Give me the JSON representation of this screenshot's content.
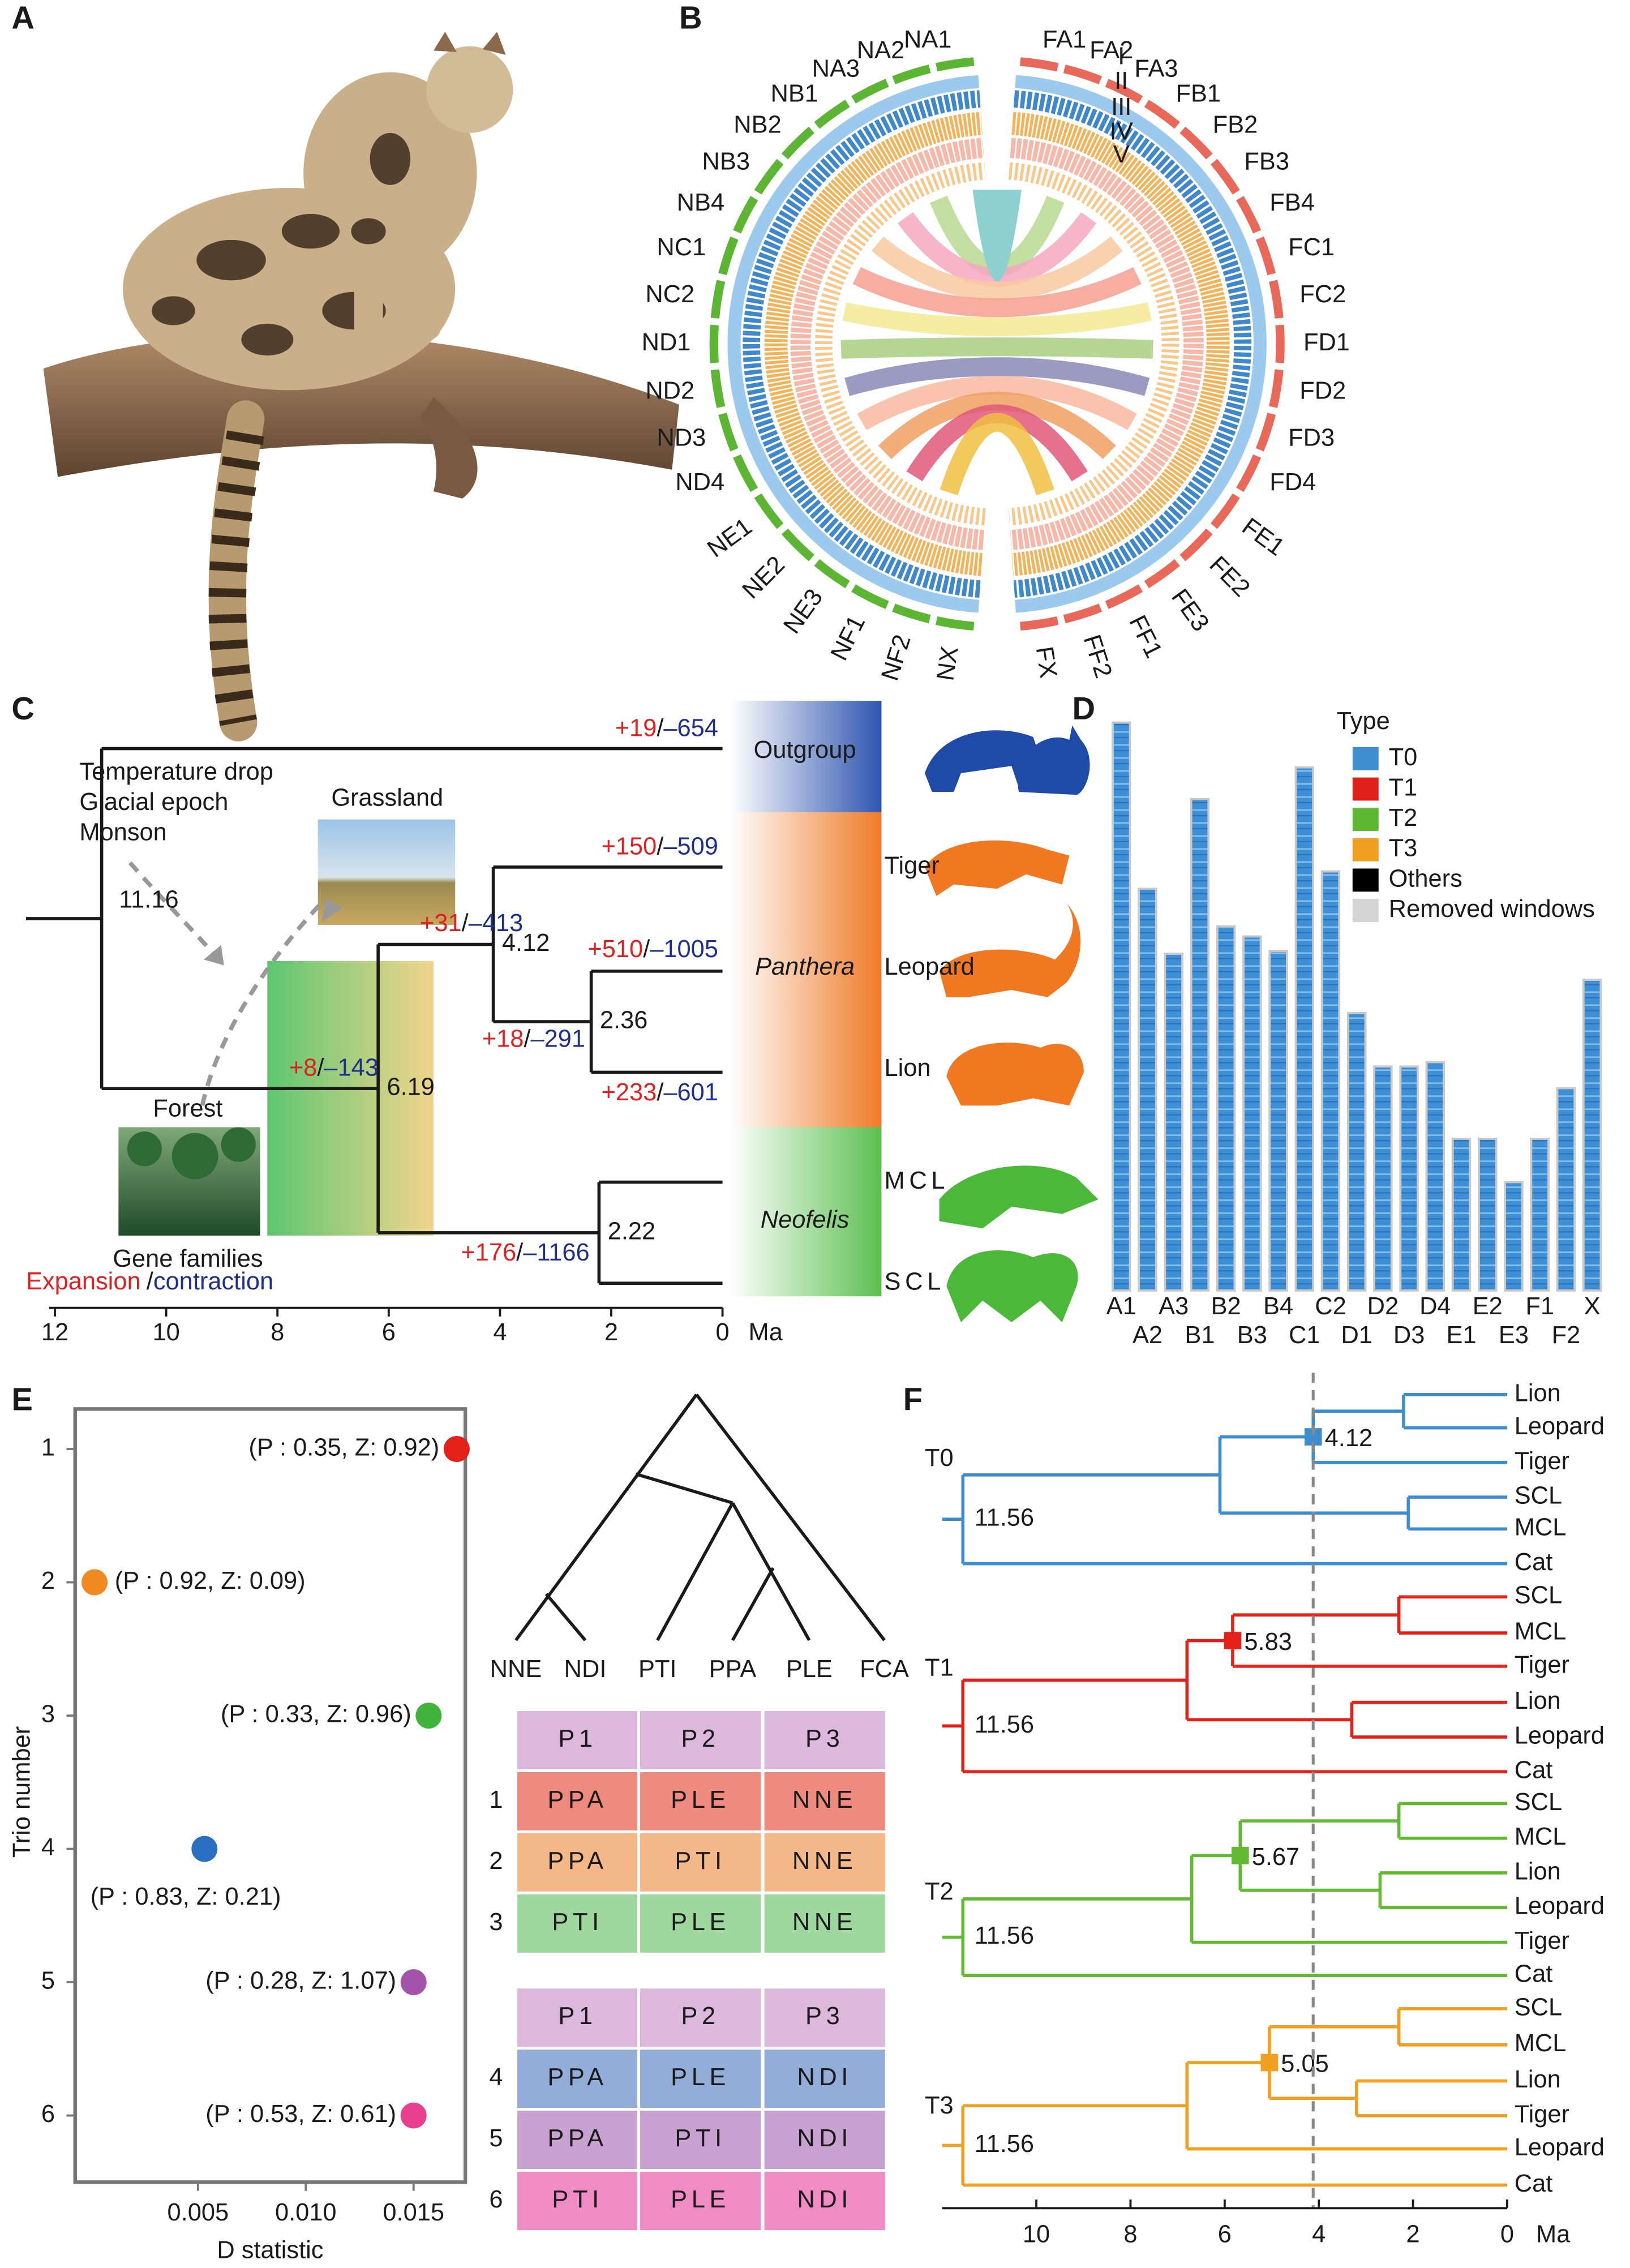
{
  "panel_labels": [
    "A",
    "B",
    "C",
    "D",
    "E",
    "F"
  ],
  "circos": {
    "left_labels": [
      "NA1",
      "NA2",
      "NA3",
      "NB1",
      "NB2",
      "NB3",
      "NB4",
      "NC1",
      "NC2",
      "ND1",
      "ND2",
      "ND3",
      "ND4",
      "NE1",
      "NE2",
      "NE3",
      "NF1",
      "NF2",
      "NX"
    ],
    "left_color": "#5db534",
    "right_labels": [
      "FA1",
      "FA2",
      "FA3",
      "FB1",
      "FB2",
      "FB3",
      "FB4",
      "FC1",
      "FC2",
      "FD1",
      "FD2",
      "FD3",
      "FD4",
      "FE1",
      "FE2",
      "FE3",
      "FF1",
      "FF2",
      "FX"
    ],
    "right_color": "#e8685a",
    "track_labels": [
      "I",
      "II",
      "III",
      "IV",
      "V"
    ]
  },
  "divergence_tree": {
    "notes": [
      "Temperature drop",
      "Glacial epoch",
      "Monson"
    ],
    "habitats": [
      "Grassland",
      "Forest"
    ],
    "legend": {
      "title": "Gene families",
      "expansion": "Expansion",
      "separator": "/",
      "contraction": "contraction"
    },
    "expansion_color": "#e02020",
    "contraction_color": "#1f2f8c",
    "groups": [
      "Outgroup",
      "Panthera",
      "Neofelis"
    ],
    "group_colors": [
      "#2f55b0",
      "#f07a28",
      "#5cc050"
    ],
    "species": [
      "Tiger",
      "Leopard",
      "Lion",
      "MCL",
      "SCL"
    ],
    "node_ages": [
      11.16,
      6.19,
      4.12,
      2.36,
      2.22
    ],
    "branch_changes": [
      {
        "gain": "+19",
        "loss": "–654"
      },
      {
        "gain": "+150",
        "loss": "–509"
      },
      {
        "gain": "+510",
        "loss": "–1005"
      },
      {
        "gain": "+233",
        "loss": "–601"
      },
      {
        "gain": "+31",
        "loss": "–413"
      },
      {
        "gain": "+18",
        "loss": "–291"
      },
      {
        "gain": "+8",
        "loss": "–143"
      },
      {
        "gain": "+176",
        "loss": "–1166"
      }
    ],
    "xlim": [
      12,
      0
    ],
    "xticks": [
      12,
      10,
      8,
      6,
      4,
      2,
      0
    ],
    "unit": "Ma"
  },
  "chart_data": [
    {
      "type": "bar",
      "categories": [
        "A1",
        "A2",
        "A3",
        "B1",
        "B2",
        "B3",
        "B4",
        "C1",
        "C2",
        "D1",
        "D2",
        "D3",
        "D4",
        "E1",
        "E2",
        "E3",
        "F1",
        "F2",
        "X"
      ],
      "values": [
        393,
        278,
        233,
        340,
        252,
        245,
        235,
        362,
        290,
        192,
        155,
        155,
        158,
        105,
        105,
        75,
        105,
        140,
        215
      ],
      "color": "#3d8fd6",
      "legend_title": "Type",
      "legend": [
        {
          "name": "T0",
          "color": "#3f8fd0"
        },
        {
          "name": "T1",
          "color": "#e0201b"
        },
        {
          "name": "T2",
          "color": "#5cb830"
        },
        {
          "name": "T3",
          "color": "#f0a020"
        },
        {
          "name": "Others",
          "color": "#000000"
        },
        {
          "name": "Removed windows",
          "color": "#d4d4d4"
        }
      ]
    },
    {
      "type": "scatter",
      "x": [
        0.017,
        0.0002,
        0.0157,
        0.0053,
        0.015,
        0.015
      ],
      "y": [
        1,
        2,
        3,
        4,
        5,
        6
      ],
      "colors": [
        "#e32119",
        "#f08a20",
        "#3fb33a",
        "#2a6fc0",
        "#a454a8",
        "#e8408e"
      ],
      "annotations": [
        "(P : 0.35, Z: 0.92)",
        "(P : 0.92, Z: 0.09)",
        "(P : 0.33, Z: 0.96)",
        "(P : 0.83, Z: 0.21)",
        "(P : 0.28, Z: 1.07)",
        "(P : 0.53, Z: 0.61)"
      ],
      "xlim": [
        -0.0007,
        0.0174
      ],
      "ylim": [
        6.5,
        0.7
      ],
      "xticks": [
        0.005,
        {
          "value": 0.01,
          "label": "0.010"
        },
        0.015
      ],
      "yticks": [
        1,
        2,
        3,
        4,
        5,
        6
      ],
      "xlabel": "D statistic",
      "ylabel": "Trio number"
    }
  ],
  "trio_topology": {
    "leaves": [
      "NNE",
      "NDI",
      "PTI",
      "PPA",
      "PLE",
      "FCA"
    ]
  },
  "trio_tables": {
    "header_color": "#dcb8dc",
    "tables": [
      {
        "header": [
          "P1",
          "P2",
          "P3"
        ],
        "numbers": [
          "1",
          "2",
          "3"
        ],
        "rows": [
          [
            "PPA",
            "PLE",
            "NNE"
          ],
          [
            "PPA",
            "PTI",
            "NNE"
          ],
          [
            "PTI",
            "PLE",
            "NNE"
          ]
        ],
        "row_colors": [
          "#ee8a7e",
          "#f5b888",
          "#9fd89f"
        ]
      },
      {
        "header": [
          "P1",
          "P2",
          "P3"
        ],
        "numbers": [
          "4",
          "5",
          "6"
        ],
        "rows": [
          [
            "PPA",
            "PLE",
            "NDI"
          ],
          [
            "PPA",
            "PTI",
            "NDI"
          ],
          [
            "PTI",
            "PLE",
            "NDI"
          ]
        ],
        "row_colors": [
          "#93add9",
          "#c8a2d0",
          "#ef8cc4"
        ]
      }
    ]
  },
  "gene_trees": {
    "xlim": [
      12,
      0
    ],
    "xticks": [
      10,
      8,
      6,
      4,
      2,
      0
    ],
    "unit": "Ma",
    "trees": [
      {
        "name": "T0",
        "color": "#3d8ed0",
        "root_age": 11.56,
        "split_age": 4.12,
        "leaves": [
          "Lion",
          "Leopard",
          "Tiger",
          "SCL",
          "MCL",
          "Cat"
        ],
        "label_colors": [
          "#1a1a1a",
          "#1a1a1a",
          "#1a1a1a",
          "#3d8ed0",
          "#3d8ed0",
          "#1a1a1a"
        ]
      },
      {
        "name": "T1",
        "color": "#e32119",
        "root_age": 11.56,
        "split_age": 5.83,
        "leaves": [
          "SCL",
          "MCL",
          "Tiger",
          "Lion",
          "Leopard",
          "Cat"
        ],
        "label_colors": [
          "#e32119",
          "#e32119",
          "#1a1a1a",
          "#1a1a1a",
          "#1a1a1a",
          "#1a1a1a"
        ]
      },
      {
        "name": "T2",
        "color": "#64b932",
        "root_age": 11.56,
        "split_age": 5.67,
        "leaves": [
          "SCL",
          "MCL",
          "Lion",
          "Leopard",
          "Tiger",
          "Cat"
        ],
        "label_colors": [
          "#64b932",
          "#64b932",
          "#1a1a1a",
          "#1a1a1a",
          "#1a1a1a",
          "#1a1a1a"
        ]
      },
      {
        "name": "T3",
        "color": "#f0a020",
        "root_age": 11.56,
        "split_age": 5.05,
        "leaves": [
          "SCL",
          "MCL",
          "Lion",
          "Tiger",
          "Leopard",
          "Cat"
        ],
        "label_colors": [
          "#f0a020",
          "#f0a020",
          "#1a1a1a",
          "#1a1a1a",
          "#1a1a1a",
          "#1a1a1a"
        ]
      }
    ]
  }
}
